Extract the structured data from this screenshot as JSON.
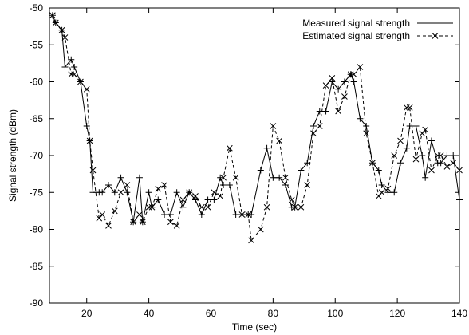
{
  "chart_data": {
    "type": "line",
    "title": "",
    "xlabel": "Time (sec)",
    "ylabel": "Signal strength (dBm)",
    "xlim": [
      8,
      140
    ],
    "ylim": [
      -90,
      -50
    ],
    "xticks": [
      20,
      40,
      60,
      80,
      100,
      120,
      140
    ],
    "yticks": [
      -90,
      -85,
      -80,
      -75,
      -70,
      -65,
      -60,
      -55,
      -50
    ],
    "xtick_labels": [
      "20",
      "40",
      "60",
      "80",
      "100",
      "120",
      "140"
    ],
    "ytick_labels": [
      "-90",
      "-85",
      "-80",
      "-75",
      "-70",
      "-65",
      "-60",
      "-55",
      "-50"
    ],
    "grid": false,
    "legend_position": "top-right",
    "series": [
      {
        "name": "Measured signal strength",
        "marker": "+",
        "line_style": "solid",
        "color": "#000000",
        "x": [
          9,
          10,
          12,
          13,
          15,
          16,
          18,
          20,
          21,
          22,
          24,
          25,
          27,
          29,
          31,
          33,
          35,
          37,
          38,
          40,
          41,
          43,
          45,
          47,
          49,
          51,
          53,
          55,
          57,
          59,
          61,
          63,
          64,
          66,
          68,
          70,
          72,
          73,
          76,
          78,
          80,
          82,
          84,
          86,
          87,
          89,
          91,
          93,
          95,
          97,
          99,
          101,
          103,
          105,
          106,
          108,
          110,
          112,
          114,
          115,
          117,
          119,
          121,
          123,
          124,
          126,
          128,
          129,
          131,
          133,
          134,
          136,
          138,
          140
        ],
        "y": [
          -51,
          -52,
          -53,
          -58,
          -57,
          -58,
          -60,
          -66,
          -68,
          -75,
          -75,
          -75,
          -74,
          -75,
          -73,
          -75,
          -79,
          -73,
          -79,
          -75,
          -77,
          -76,
          -78,
          -78,
          -75,
          -77,
          -75,
          -76,
          -78,
          -76,
          -76,
          -73,
          -74,
          -74,
          -78,
          -78,
          -78,
          -78,
          -72,
          -69,
          -73,
          -73,
          -74,
          -77,
          -77,
          -72,
          -71,
          -66,
          -64,
          -64,
          -60,
          -61,
          -60,
          -59,
          -60,
          -65,
          -66,
          -71,
          -72,
          -74,
          -75,
          -75,
          -71,
          -69,
          -66,
          -66,
          -70,
          -73,
          -68,
          -71,
          -71,
          -70,
          -70,
          -76
        ]
      },
      {
        "name": "Estimated signal strength",
        "marker": "x",
        "line_style": "dashed",
        "color": "#000000",
        "x": [
          9,
          10,
          12,
          13,
          15,
          16,
          18,
          20,
          21,
          22,
          24,
          25,
          27,
          29,
          31,
          33,
          35,
          37,
          38,
          40,
          41,
          43,
          45,
          47,
          49,
          51,
          53,
          55,
          57,
          59,
          61,
          63,
          64,
          66,
          68,
          70,
          72,
          73,
          76,
          78,
          80,
          82,
          84,
          86,
          87,
          89,
          91,
          93,
          95,
          97,
          99,
          101,
          103,
          105,
          106,
          108,
          110,
          112,
          114,
          115,
          117,
          119,
          121,
          123,
          124,
          126,
          128,
          129,
          131,
          133,
          134,
          136,
          138,
          140
        ],
        "y": [
          -51,
          -52,
          -53,
          -54,
          -59,
          -59,
          -60,
          -61,
          -68,
          -72,
          -78.5,
          -78,
          -79.5,
          -77.5,
          -75,
          -74,
          -79,
          -78,
          -79,
          -77,
          -77,
          -74.5,
          -74,
          -79,
          -79.5,
          -76,
          -75,
          -75.5,
          -77,
          -77,
          -75,
          -75.5,
          -73,
          -69,
          -73,
          -78,
          -78,
          -81.5,
          -80,
          -77,
          -66,
          -68,
          -73,
          -76,
          -77,
          -77,
          -74,
          -67,
          -66,
          -60.5,
          -59.5,
          -64,
          -62,
          -59,
          -59,
          -58,
          -67,
          -71,
          -75.5,
          -75,
          -74.5,
          -70,
          -68,
          -63.5,
          -63.5,
          -70.5,
          -67,
          -66.5,
          -72,
          -70,
          -70,
          -71.5,
          -71,
          -72
        ]
      }
    ]
  }
}
